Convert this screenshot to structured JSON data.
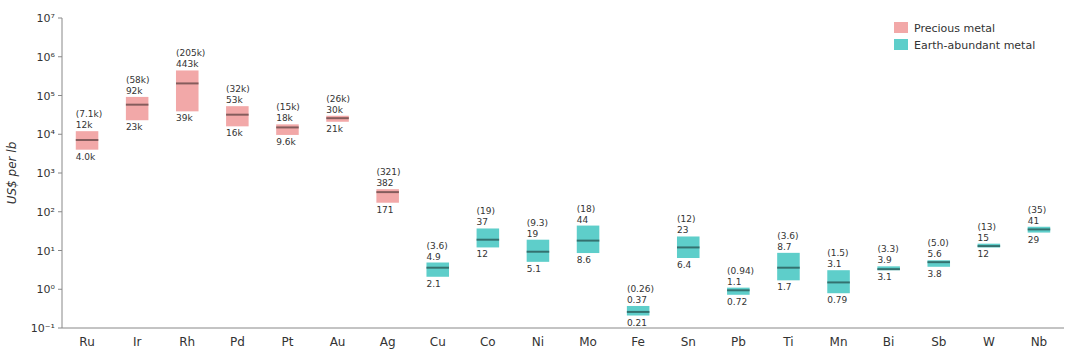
{
  "chart_data": {
    "type": "range_bar",
    "ylabel": "US$ per lb",
    "log": "y",
    "legend": "upper right",
    "data_labels": true,
    "categories": [
      "Ru",
      "Ir",
      "Rh",
      "Pd",
      "Pt",
      "Au",
      "Ag",
      "Cu",
      "Co",
      "Ni",
      "Mo",
      "Fe",
      "Sn",
      "Pb",
      "Ti",
      "Mn",
      "Bi",
      "Sb",
      "W",
      "Nb"
    ],
    "ylim": [
      0.1,
      10000000
    ],
    "yticks": [
      {
        "value": 0.1,
        "label": "10⁻¹"
      },
      {
        "value": 1,
        "label": "10⁰"
      },
      {
        "value": 10,
        "label": "10¹"
      },
      {
        "value": 100,
        "label": "10²"
      },
      {
        "value": 1000,
        "label": "10³"
      },
      {
        "value": 10000,
        "label": "10⁴"
      },
      {
        "value": 100000,
        "label": "10⁵"
      },
      {
        "value": 1000000,
        "label": "10⁶"
      },
      {
        "value": 10000000,
        "label": "10⁷"
      }
    ],
    "series": [
      {
        "name": "Precious metal",
        "color": "#f2a8a8",
        "low": [
          4000,
          23000,
          39000,
          16000,
          9600,
          21000,
          171,
          null,
          null,
          null,
          null,
          null,
          null,
          null,
          null,
          null,
          null,
          null,
          null,
          null
        ],
        "median": [
          7100,
          58000,
          205000,
          32000,
          15000,
          26000,
          321,
          null,
          null,
          null,
          null,
          null,
          null,
          null,
          null,
          null,
          null,
          null,
          null,
          null
        ],
        "high": [
          12000,
          92000,
          443000,
          53000,
          18000,
          30000,
          382,
          null,
          null,
          null,
          null,
          null,
          null,
          null,
          null,
          null,
          null,
          null,
          null,
          null
        ],
        "low_labels": [
          "4.0k",
          "23k",
          "39k",
          "16k",
          "9.6k",
          "21k",
          "171",
          null,
          null,
          null,
          null,
          null,
          null,
          null,
          null,
          null,
          null,
          null,
          null,
          null
        ],
        "median_labels": [
          "(7.1k)",
          "(58k)",
          "(205k)",
          "(32k)",
          "(15k)",
          "(26k)",
          "(321)",
          null,
          null,
          null,
          null,
          null,
          null,
          null,
          null,
          null,
          null,
          null,
          null,
          null
        ],
        "high_labels": [
          "12k",
          "92k",
          "443k",
          "53k",
          "18k",
          "30k",
          "382",
          null,
          null,
          null,
          null,
          null,
          null,
          null,
          null,
          null,
          null,
          null,
          null,
          null
        ]
      },
      {
        "name": "Earth-abundant metal",
        "color": "#5ececa",
        "low": [
          null,
          null,
          null,
          null,
          null,
          null,
          null,
          2.1,
          12,
          5.1,
          8.6,
          0.21,
          6.4,
          0.72,
          1.7,
          0.79,
          3.1,
          3.8,
          12,
          29
        ],
        "median": [
          null,
          null,
          null,
          null,
          null,
          null,
          null,
          3.6,
          19,
          9.3,
          18,
          0.26,
          12,
          0.94,
          3.6,
          1.5,
          3.3,
          5.0,
          13,
          35
        ],
        "high": [
          null,
          null,
          null,
          null,
          null,
          null,
          null,
          4.9,
          37,
          19,
          44,
          0.37,
          23,
          1.1,
          8.7,
          3.1,
          3.9,
          5.6,
          15,
          41
        ],
        "low_labels": [
          null,
          null,
          null,
          null,
          null,
          null,
          null,
          "2.1",
          "12",
          "5.1",
          "8.6",
          "0.21",
          "6.4",
          "0.72",
          "1.7",
          "0.79",
          "3.1",
          "3.8",
          "12",
          "29"
        ],
        "median_labels": [
          null,
          null,
          null,
          null,
          null,
          null,
          null,
          "(3.6)",
          "(19)",
          "(9.3)",
          "(18)",
          "(0.26)",
          "(12)",
          "(0.94)",
          "(3.6)",
          "(1.5)",
          "(3.3)",
          "(5.0)",
          "(13)",
          "(35)"
        ],
        "high_labels": [
          null,
          null,
          null,
          null,
          null,
          null,
          null,
          "4.9",
          "37",
          "19",
          "44",
          "0.37",
          "23",
          "1.1",
          "8.7",
          "3.1",
          "3.9",
          "5.6",
          "15",
          "41"
        ]
      }
    ]
  }
}
